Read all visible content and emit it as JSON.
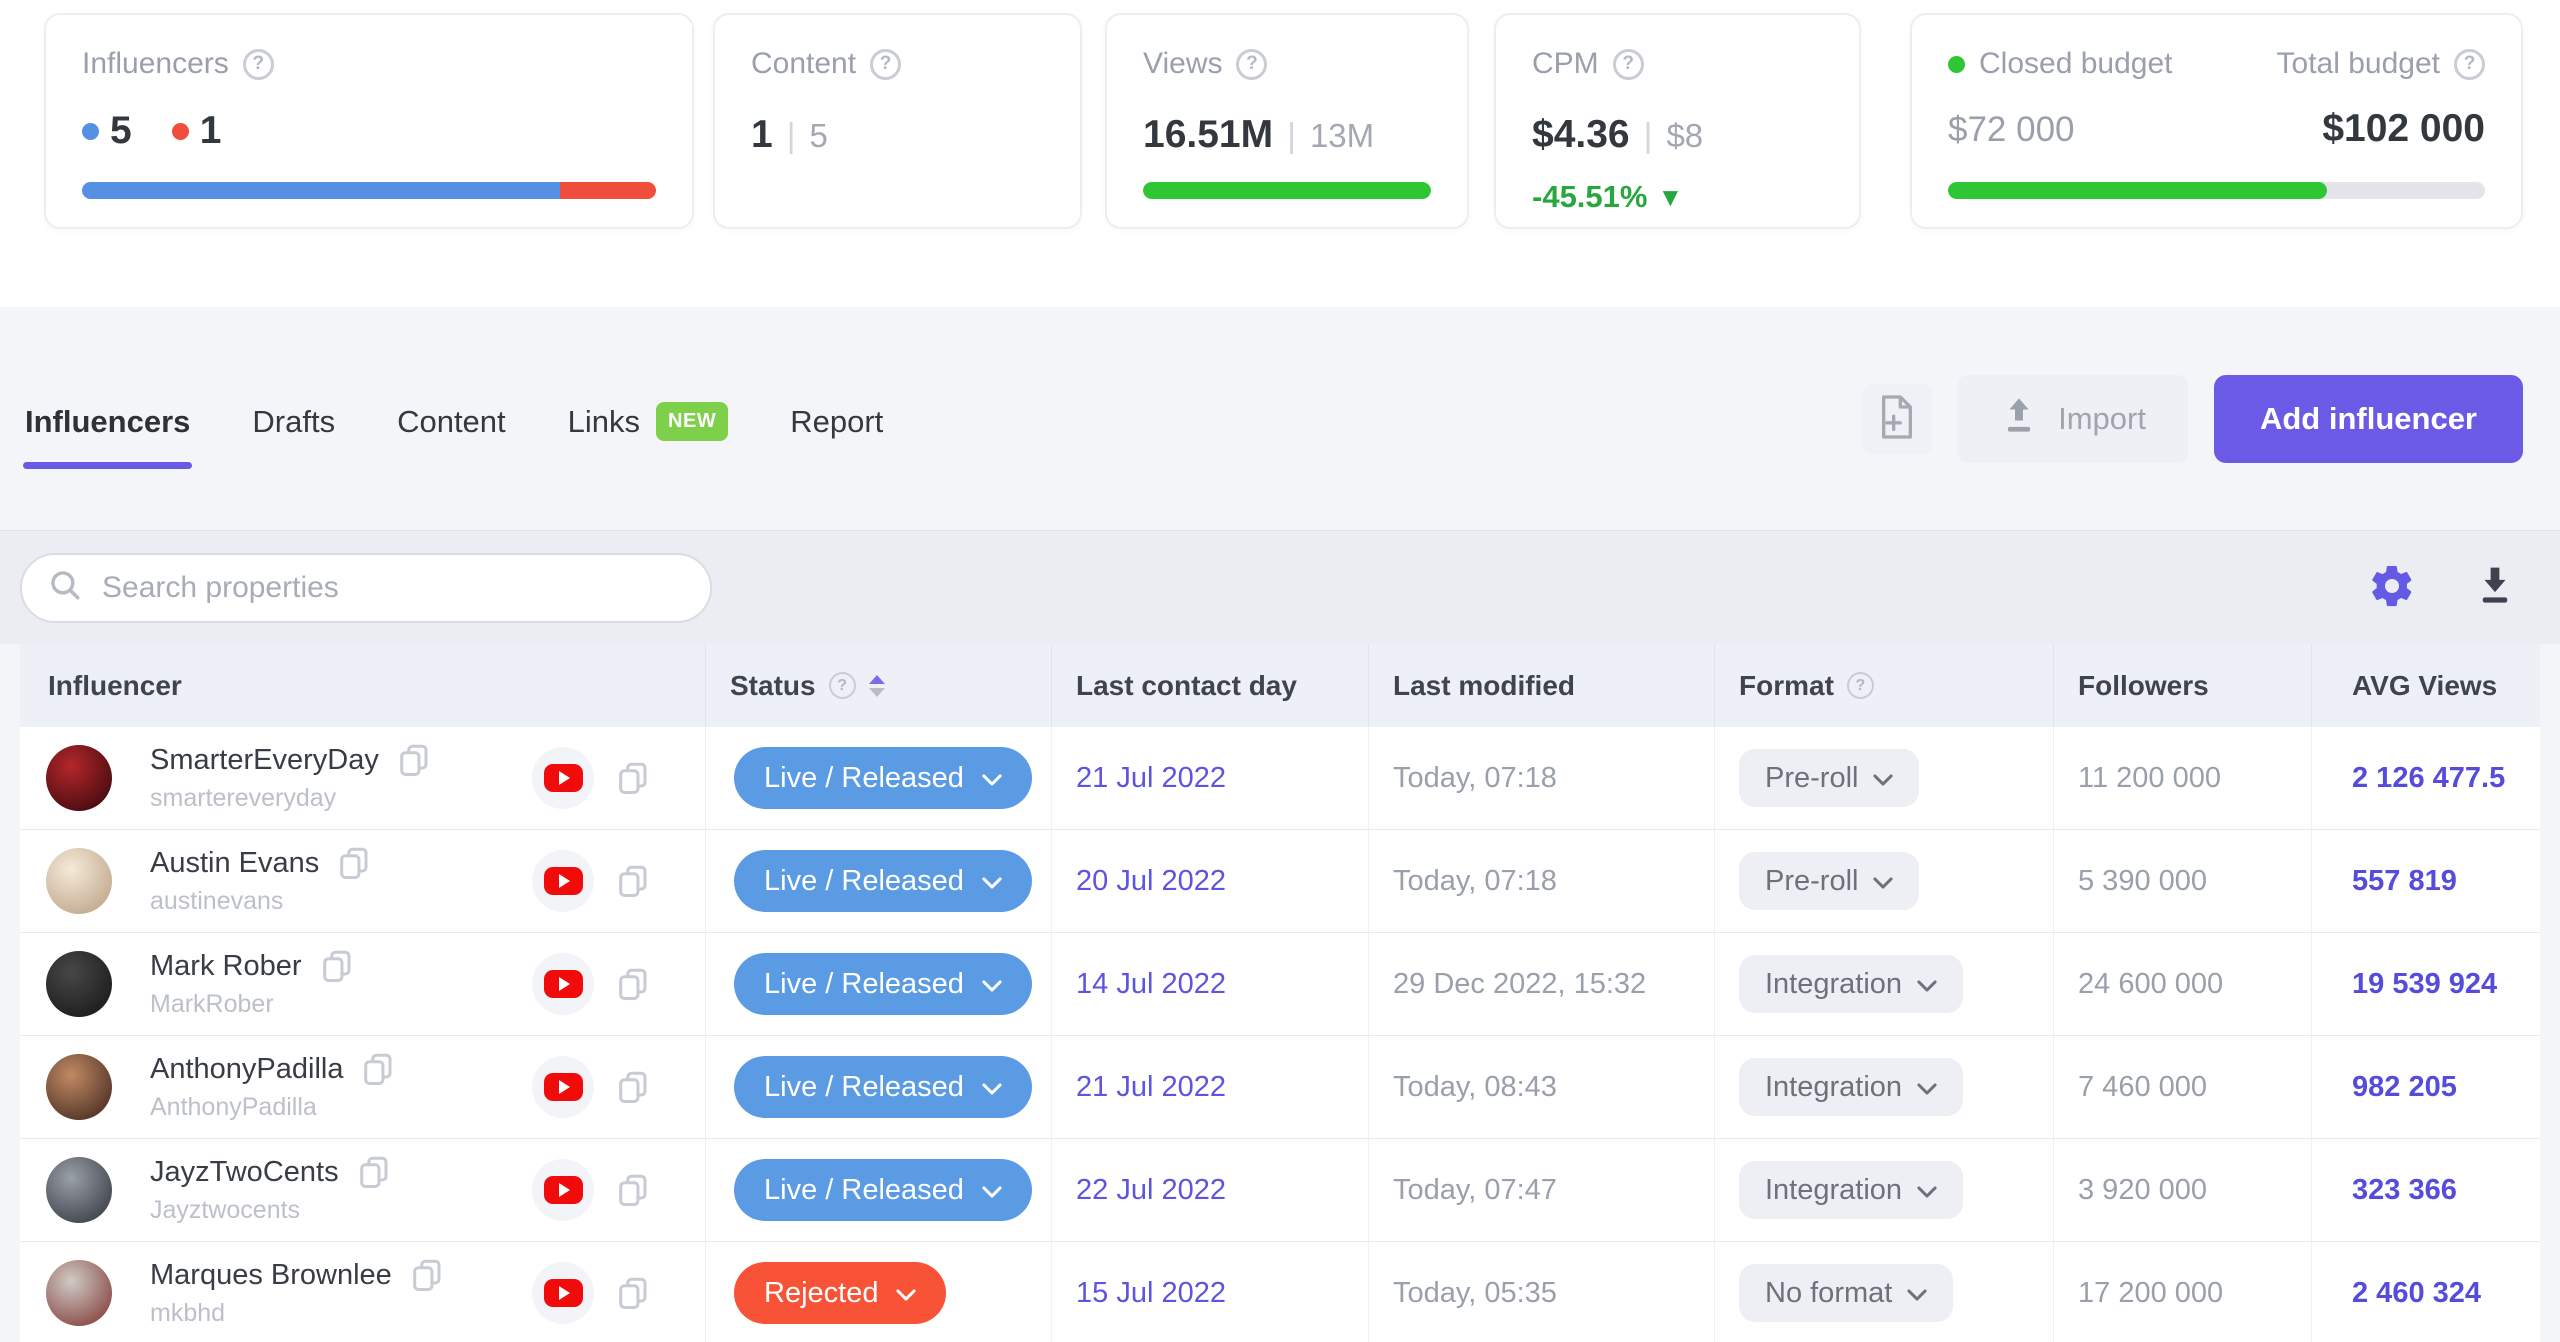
{
  "header_cards": {
    "influencers": {
      "title": "Influencers",
      "legend": [
        {
          "value": "5",
          "color": "#5590e2"
        },
        {
          "value": "1",
          "color": "#f04e3c"
        }
      ],
      "bar_segments": [
        {
          "color": "#5590e2",
          "pct": 83.3
        },
        {
          "color": "#f04e3c",
          "pct": 16.7
        }
      ]
    },
    "content": {
      "title": "Content",
      "primary": "1",
      "secondary": "5"
    },
    "views": {
      "title": "Views",
      "primary": "16.51M",
      "secondary": "13M",
      "progress_pct": 100,
      "progress_color": "#2fc635"
    },
    "cpm": {
      "title": "CPM",
      "primary": "$4.36",
      "secondary": "$8",
      "delta": "-45.51%",
      "delta_arrow": "▼",
      "delta_color": "#28a73f"
    },
    "budget": {
      "closed_label": "Closed budget",
      "total_label": "Total budget",
      "closed_value": "$72 000",
      "total_value": "$102 000",
      "progress_pct": 70.6,
      "progress_color": "#2fc635",
      "dot_color": "#2fc635"
    }
  },
  "tabs": [
    {
      "label": "Influencers",
      "active": true
    },
    {
      "label": "Drafts",
      "active": false
    },
    {
      "label": "Content",
      "active": false
    },
    {
      "label": "Links",
      "active": false,
      "badge": "NEW"
    },
    {
      "label": "Report",
      "active": false
    }
  ],
  "toolbar": {
    "import_label": "Import",
    "add_influencer_label": "Add influencer"
  },
  "search": {
    "placeholder": "Search properties"
  },
  "table": {
    "columns": [
      "Influencer",
      "Status",
      "Last contact day",
      "Last modified",
      "Format",
      "Followers",
      "AVG Views"
    ],
    "sort": {
      "column": "Status",
      "direction": "asc"
    },
    "rows": [
      {
        "name": "SmarterEveryDay",
        "handle": "smartereveryday",
        "avatar": [
          "#b3272b",
          "#30060a"
        ],
        "status": "Live / Released",
        "status_type": "live",
        "last_contact": "21 Jul 2022",
        "last_modified": "Today, 07:18",
        "format": "Pre-roll",
        "followers": "11 200 000",
        "avg_views": "2 126 477.5"
      },
      {
        "name": "Austin Evans",
        "handle": "austinevans",
        "avatar": [
          "#f5ead9",
          "#b79b7e"
        ],
        "status": "Live / Released",
        "status_type": "live",
        "last_contact": "20 Jul 2022",
        "last_modified": "Today, 07:18",
        "format": "Pre-roll",
        "followers": "5 390 000",
        "avg_views": "557 819"
      },
      {
        "name": "Mark Rober",
        "handle": "MarkRober",
        "avatar": [
          "#474747",
          "#141414"
        ],
        "status": "Live / Released",
        "status_type": "live",
        "last_contact": "14 Jul 2022",
        "last_modified": "29 Dec 2022, 15:32",
        "format": "Integration",
        "followers": "24 600 000",
        "avg_views": "19 539 924"
      },
      {
        "name": "AnthonyPadilla",
        "handle": "AnthonyPadilla",
        "avatar": [
          "#c08a64",
          "#3a201a"
        ],
        "status": "Live / Released",
        "status_type": "live",
        "last_contact": "21 Jul 2022",
        "last_modified": "Today, 08:43",
        "format": "Integration",
        "followers": "7 460 000",
        "avg_views": "982 205"
      },
      {
        "name": "JayzTwoCents",
        "handle": "Jayztwocents",
        "avatar": [
          "#9aa0a8",
          "#2c3038"
        ],
        "status": "Live / Released",
        "status_type": "live",
        "last_contact": "22 Jul 2022",
        "last_modified": "Today, 07:47",
        "format": "Integration",
        "followers": "3 920 000",
        "avg_views": "323 366"
      },
      {
        "name": "Marques Brownlee",
        "handle": "mkbhd",
        "avatar": [
          "#cfcbc6",
          "#7c2e2a"
        ],
        "status": "Rejected",
        "status_type": "rejected",
        "last_contact": "15 Jul 2022",
        "last_modified": "Today, 05:35",
        "format": "No format",
        "followers": "17 200 000",
        "avg_views": "2 460 324"
      }
    ]
  },
  "colors": {
    "accent_purple": "#685ce6",
    "link_purple": "#5d54e0",
    "avg_views_purple": "#554cdc",
    "status_live_blue": "#5b9be4",
    "status_rejected_red": "#f85336",
    "progress_green": "#2fc635",
    "new_badge_green": "#7ed04b",
    "youtube_red": "#f10c0c",
    "section_bg": "#f4f5f9",
    "table_header_bg": "#eef0f7"
  }
}
